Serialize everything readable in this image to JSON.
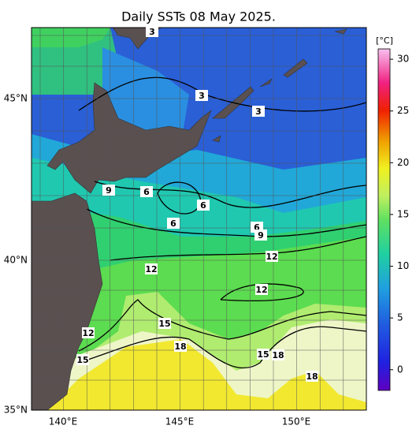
{
  "title": "Daily SSTs 08 May 2025.",
  "lat_labels": [
    "45°N",
    "40°N",
    "35°N"
  ],
  "lon_labels": [
    "140°E",
    "145°E",
    "150°E"
  ],
  "colorbar": {
    "unit": "[°C]",
    "ticks": [
      0,
      5,
      10,
      15,
      20,
      25,
      30
    ]
  },
  "contour_labels": [
    "3",
    "3",
    "3",
    "9",
    "6",
    "6",
    "6",
    "6",
    "9",
    "12",
    "12",
    "12",
    "12",
    "15",
    "18",
    "15",
    "15",
    "18",
    "18"
  ]
}
